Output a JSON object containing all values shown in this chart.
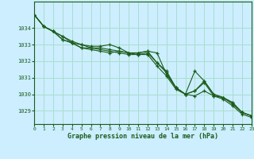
{
  "title": "",
  "xlabel": "Graphe pression niveau de la mer (hPa)",
  "ylabel": "",
  "background_color": "#cceeff",
  "plot_bg_color": "#cceeff",
  "grid_color": "#aaddcc",
  "line_color": "#1a5c1a",
  "marker_color": "#1a5c1a",
  "xlim": [
    0,
    23
  ],
  "ylim": [
    1028.2,
    1035.6
  ],
  "yticks": [
    1029,
    1030,
    1031,
    1032,
    1033,
    1034
  ],
  "xticks": [
    0,
    1,
    2,
    3,
    4,
    5,
    6,
    7,
    8,
    9,
    10,
    11,
    12,
    13,
    14,
    15,
    16,
    17,
    18,
    19,
    20,
    21,
    22,
    23
  ],
  "series": [
    [
      1034.8,
      1034.1,
      1033.8,
      1033.5,
      1033.1,
      1033.0,
      1032.8,
      1032.8,
      1032.7,
      1032.6,
      1032.5,
      1032.5,
      1032.6,
      1031.9,
      1031.4,
      1030.4,
      1030.0,
      1030.2,
      1030.8,
      1030.0,
      1029.8,
      1029.5,
      1028.9,
      1028.7
    ],
    [
      1034.8,
      1034.1,
      1033.8,
      1033.3,
      1033.1,
      1032.8,
      1032.8,
      1032.7,
      1032.6,
      1032.5,
      1032.4,
      1032.4,
      1032.4,
      1031.7,
      1031.1,
      1030.3,
      1030.0,
      1029.9,
      1030.2,
      1029.9,
      1029.7,
      1029.3,
      1028.8,
      1028.6
    ],
    [
      1034.8,
      1034.1,
      1033.8,
      1033.3,
      1033.1,
      1032.8,
      1032.7,
      1032.6,
      1032.5,
      1032.6,
      1032.5,
      1032.5,
      1032.6,
      1032.5,
      1031.2,
      1030.4,
      1030.0,
      1030.2,
      1030.7,
      1029.9,
      1029.8,
      1029.4,
      1028.9,
      1028.7
    ],
    [
      1034.8,
      1034.1,
      1033.8,
      1033.5,
      1033.2,
      1033.0,
      1032.9,
      1032.9,
      1033.0,
      1032.8,
      1032.5,
      1032.4,
      1032.5,
      1031.9,
      1031.3,
      1030.4,
      1030.0,
      1031.4,
      1030.8,
      1030.0,
      1029.8,
      1029.5,
      1028.9,
      1028.7
    ]
  ]
}
